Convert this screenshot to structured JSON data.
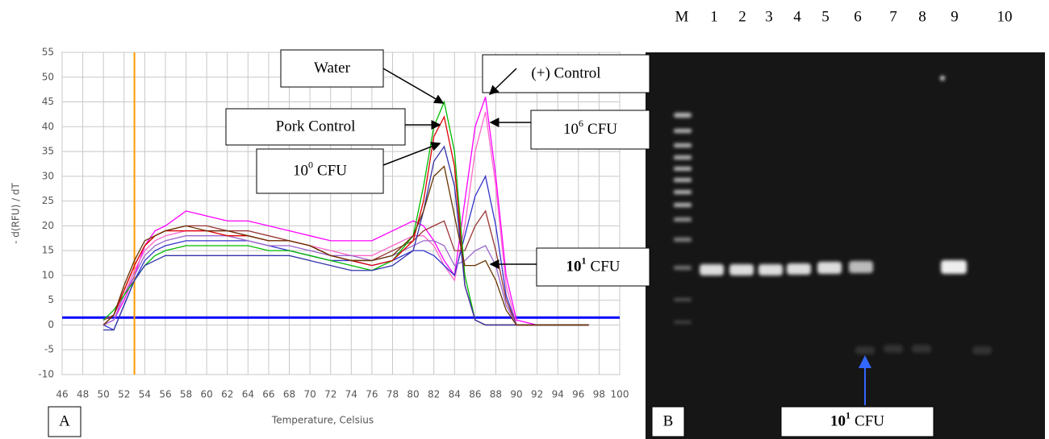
{
  "chart_data": {
    "type": "line",
    "y_label": "- d(RFU) / dT",
    "x_label": "Temperature, Celsius",
    "panel_label": "A",
    "x": [
      50,
      51,
      52,
      53,
      54,
      55,
      56,
      58,
      60,
      62,
      64,
      66,
      68,
      70,
      72,
      74,
      76,
      78,
      80,
      81,
      82,
      83,
      84,
      85,
      86,
      87,
      88,
      89,
      90,
      92,
      94,
      97
    ],
    "series": [
      {
        "color": "#ff00ff",
        "values": [
          0,
          1,
          5,
          10,
          16,
          19,
          20,
          23,
          22,
          21,
          21,
          20,
          19,
          18,
          17,
          17,
          17,
          19,
          21,
          20,
          17,
          13,
          10,
          25,
          40,
          46,
          30,
          10,
          1,
          0,
          0,
          0
        ]
      },
      {
        "color": "#ff66cc",
        "values": [
          1,
          2,
          6,
          11,
          15,
          17,
          18,
          19,
          19,
          19,
          18,
          17,
          17,
          16,
          15,
          14,
          14,
          16,
          18,
          18,
          16,
          12,
          9,
          20,
          35,
          43,
          28,
          8,
          0,
          0,
          0,
          0
        ]
      },
      {
        "color": "#3333cc",
        "values": [
          0,
          -1,
          4,
          9,
          13,
          15,
          16,
          17,
          17,
          17,
          17,
          16,
          15,
          14,
          13,
          13,
          12,
          13,
          15,
          15,
          14,
          12,
          10,
          18,
          26,
          30,
          20,
          6,
          0,
          0,
          0,
          0
        ]
      },
      {
        "color": "#993333",
        "values": [
          1,
          2,
          7,
          12,
          16,
          18,
          19,
          20,
          20,
          19,
          19,
          18,
          17,
          16,
          14,
          13,
          13,
          15,
          17,
          19,
          20,
          21,
          15,
          15,
          20,
          23,
          15,
          5,
          0,
          0,
          0,
          0
        ]
      },
      {
        "color": "#9966cc",
        "values": [
          0,
          1,
          6,
          10,
          14,
          16,
          17,
          18,
          18,
          18,
          17,
          16,
          16,
          15,
          14,
          14,
          13,
          14,
          16,
          17,
          17,
          16,
          12,
          13,
          15,
          16,
          12,
          4,
          0,
          0,
          0,
          0
        ]
      },
      {
        "color": "#00bb00",
        "values": [
          1,
          3,
          6,
          9,
          12,
          14,
          15,
          16,
          16,
          16,
          16,
          15,
          15,
          14,
          13,
          12,
          11,
          13,
          18,
          28,
          40,
          45,
          35,
          10,
          1,
          0,
          0,
          0,
          0,
          0,
          0,
          0
        ]
      },
      {
        "color": "#dd0000",
        "values": [
          0,
          2,
          7,
          12,
          16,
          18,
          19,
          19,
          19,
          18,
          18,
          17,
          17,
          16,
          14,
          13,
          12,
          13,
          17,
          25,
          38,
          42,
          32,
          8,
          1,
          0,
          0,
          0,
          0,
          0,
          0,
          0
        ]
      },
      {
        "color": "#3333aa",
        "values": [
          -1,
          -1,
          4,
          9,
          12,
          13,
          14,
          14,
          14,
          14,
          14,
          14,
          14,
          13,
          12,
          11,
          11,
          12,
          15,
          23,
          33,
          36,
          28,
          8,
          1,
          0,
          0,
          0,
          0,
          0,
          0,
          0
        ]
      },
      {
        "color": "#663300",
        "values": [
          0,
          2,
          8,
          13,
          17,
          18,
          19,
          20,
          19,
          19,
          18,
          17,
          17,
          16,
          14,
          13,
          13,
          14,
          18,
          23,
          30,
          32,
          22,
          12,
          12,
          13,
          9,
          3,
          0,
          0,
          0,
          0
        ]
      }
    ],
    "xlim": [
      46,
      100
    ],
    "xticks": [
      46,
      48,
      50,
      52,
      54,
      56,
      58,
      60,
      62,
      64,
      66,
      68,
      70,
      72,
      74,
      76,
      78,
      80,
      82,
      84,
      86,
      88,
      90,
      92,
      94,
      96,
      98,
      100
    ],
    "ylim": [
      -10,
      55
    ],
    "yticks": [
      -10,
      -5,
      0,
      5,
      10,
      15,
      20,
      25,
      30,
      35,
      40,
      45,
      50,
      55
    ],
    "grid": true,
    "hlines": [
      {
        "value": 1.5,
        "color": "#0000ff"
      }
    ],
    "vlines": [
      {
        "value": 53,
        "color": "#ff9900"
      }
    ],
    "annotations": [
      {
        "text": "Water"
      },
      {
        "text": "Pork Control"
      },
      {
        "text": "10",
        "sup": "0",
        "suffix": "CFU"
      },
      {
        "text": "(+) Control"
      },
      {
        "text": "10",
        "sup": "6",
        "suffix": "CFU"
      },
      {
        "text": "10",
        "sup": "1",
        "suffix": "CFU",
        "bold": true
      }
    ]
  },
  "gel": {
    "label": "B",
    "lanes": [
      "M",
      "1",
      "2",
      "3",
      "4",
      "5",
      "6",
      "7",
      "8",
      "9",
      "10"
    ],
    "annotation": {
      "text": "10",
      "sup": "1",
      "suffix": "CFU",
      "bold": true
    }
  }
}
